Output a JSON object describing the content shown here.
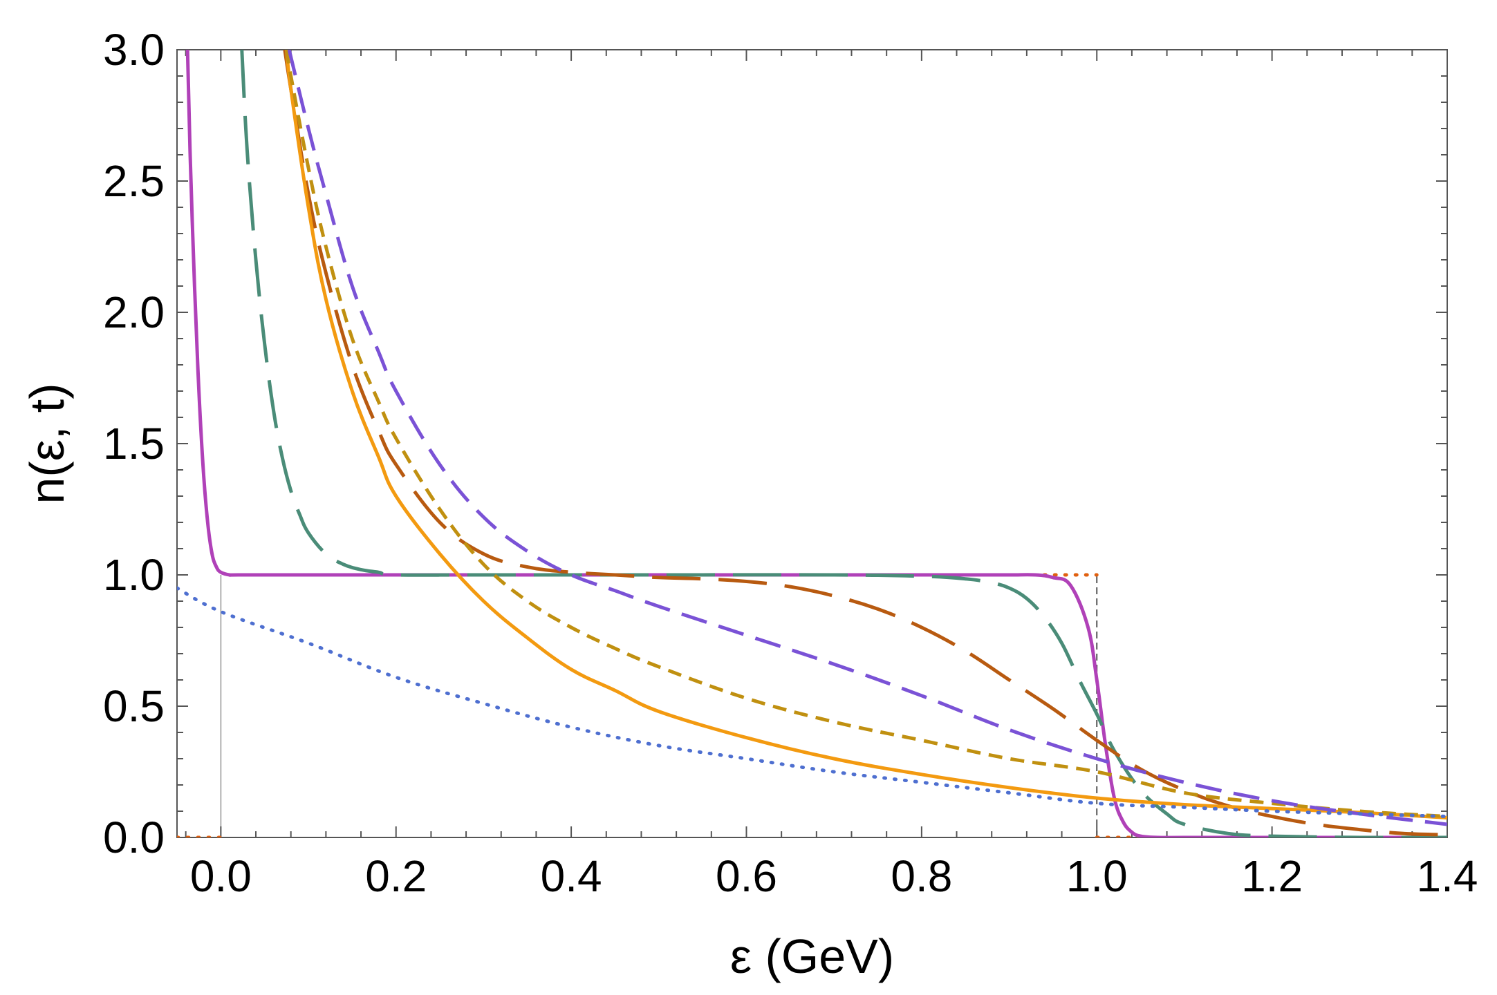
{
  "chart_data": {
    "type": "line",
    "title": "",
    "xlabel": "ε (GeV)",
    "ylabel": "n(ε, t)",
    "xlim": [
      -0.05,
      1.4
    ],
    "ylim": [
      0.0,
      3.0
    ],
    "x_ticks": [
      "0.0",
      "0.2",
      "0.4",
      "0.6",
      "0.8",
      "1.0",
      "1.2",
      "1.4"
    ],
    "x_tick_values": [
      0.0,
      0.2,
      0.4,
      0.6,
      0.8,
      1.0,
      1.2,
      1.4
    ],
    "y_ticks": [
      "0.0",
      "0.5",
      "1.0",
      "1.5",
      "2.0",
      "2.5",
      "3.0"
    ],
    "y_tick_values": [
      0.0,
      0.5,
      1.0,
      1.5,
      2.0,
      2.5,
      3.0
    ],
    "reference_lines": [
      {
        "name": "vertical-line-zero",
        "orientation": "vertical",
        "x": 0.0,
        "y_range": [
          0.0,
          1.0
        ],
        "color": "#b0b0b0",
        "dash": "solid"
      },
      {
        "name": "vertical-line-one",
        "orientation": "vertical",
        "x": 1.0,
        "y_range": [
          0.0,
          1.0
        ],
        "color": "#555555",
        "dash": "dashed"
      }
    ],
    "series": [
      {
        "name": "initial-step",
        "color": "#e06010",
        "dash": "dotted",
        "segments": [
          {
            "x": [
              -0.05,
              0.0
            ],
            "y": [
              0.0,
              0.0
            ]
          },
          {
            "x": [
              0.94,
              1.0
            ],
            "y": [
              1.0,
              1.0
            ]
          },
          {
            "x": [
              1.0,
              1.06
            ],
            "y": [
              0.0,
              0.0
            ]
          }
        ]
      },
      {
        "name": "magenta-solid",
        "color": "#b041b8",
        "dash": "solid",
        "x": [
          -0.038,
          -0.035,
          -0.03,
          -0.025,
          -0.02,
          -0.015,
          -0.01,
          -0.005,
          0.0,
          0.01,
          0.02,
          0.1,
          0.3,
          0.5,
          0.7,
          0.85,
          0.9,
          0.93,
          0.95,
          0.97,
          0.99,
          1.0,
          1.01,
          1.02,
          1.03,
          1.04,
          1.05,
          1.07,
          1.1,
          1.2,
          1.3,
          1.4
        ],
        "y": [
          3.0,
          2.6,
          2.1,
          1.7,
          1.4,
          1.2,
          1.08,
          1.03,
          1.01,
          1.0,
          1.0,
          1.0,
          1.0,
          1.0,
          1.0,
          1.0,
          1.0,
          1.0,
          0.99,
          0.96,
          0.8,
          0.6,
          0.35,
          0.15,
          0.06,
          0.02,
          0.005,
          0.0,
          0.0,
          0.0,
          0.0,
          0.0
        ]
      },
      {
        "name": "teal-long-dash",
        "color": "#4a8c78",
        "dash": "long-dash",
        "x": [
          0.024,
          0.03,
          0.04,
          0.05,
          0.06,
          0.07,
          0.08,
          0.09,
          0.1,
          0.12,
          0.14,
          0.16,
          0.18,
          0.2,
          0.3,
          0.5,
          0.7,
          0.8,
          0.85,
          0.88,
          0.9,
          0.92,
          0.94,
          0.96,
          0.98,
          1.0,
          1.02,
          1.05,
          1.08,
          1.1,
          1.15,
          1.2,
          1.3,
          1.4
        ],
        "y": [
          3.0,
          2.62,
          2.2,
          1.88,
          1.63,
          1.45,
          1.32,
          1.23,
          1.16,
          1.08,
          1.04,
          1.02,
          1.01,
          1.0,
          1.0,
          1.0,
          1.0,
          0.995,
          0.985,
          0.97,
          0.95,
          0.91,
          0.84,
          0.74,
          0.6,
          0.47,
          0.33,
          0.18,
          0.09,
          0.05,
          0.015,
          0.005,
          0.0,
          0.0
        ]
      },
      {
        "name": "brown-long-dash",
        "color": "#b85a10",
        "dash": "long-dash",
        "x": [
          0.073,
          0.08,
          0.1,
          0.12,
          0.15,
          0.18,
          0.2,
          0.25,
          0.3,
          0.35,
          0.4,
          0.45,
          0.5,
          0.55,
          0.6,
          0.65,
          0.7,
          0.75,
          0.8,
          0.85,
          0.9,
          0.95,
          1.0,
          1.05,
          1.1,
          1.15,
          1.2,
          1.25,
          1.3,
          1.35,
          1.4
        ],
        "y": [
          3.0,
          2.85,
          2.45,
          2.15,
          1.8,
          1.55,
          1.42,
          1.2,
          1.08,
          1.03,
          1.01,
          1.0,
          0.99,
          0.985,
          0.975,
          0.955,
          0.92,
          0.87,
          0.8,
          0.71,
          0.6,
          0.49,
          0.37,
          0.26,
          0.18,
          0.12,
          0.08,
          0.05,
          0.03,
          0.015,
          0.01
        ]
      },
      {
        "name": "orange-solid",
        "color": "#f39a10",
        "dash": "solid",
        "x": [
          0.075,
          0.08,
          0.1,
          0.12,
          0.15,
          0.18,
          0.2,
          0.25,
          0.3,
          0.35,
          0.4,
          0.45,
          0.5,
          0.6,
          0.7,
          0.8,
          0.9,
          1.0,
          1.1,
          1.2,
          1.3,
          1.4
        ],
        "y": [
          3.0,
          2.85,
          2.4,
          2.05,
          1.7,
          1.45,
          1.3,
          1.08,
          0.9,
          0.76,
          0.64,
          0.56,
          0.48,
          0.38,
          0.3,
          0.24,
          0.19,
          0.15,
          0.125,
          0.11,
          0.095,
          0.075
        ]
      },
      {
        "name": "gold-short-dash",
        "color": "#c09010",
        "dash": "short-dash",
        "x": [
          0.075,
          0.08,
          0.1,
          0.12,
          0.15,
          0.18,
          0.2,
          0.25,
          0.3,
          0.35,
          0.4,
          0.45,
          0.5,
          0.6,
          0.7,
          0.8,
          0.9,
          1.0,
          1.1,
          1.2,
          1.3,
          1.4
        ],
        "y": [
          3.0,
          2.9,
          2.55,
          2.25,
          1.9,
          1.66,
          1.52,
          1.25,
          1.04,
          0.9,
          0.8,
          0.72,
          0.65,
          0.53,
          0.44,
          0.37,
          0.3,
          0.25,
          0.17,
          0.13,
          0.1,
          0.08
        ]
      },
      {
        "name": "purple-dash",
        "color": "#7a52d6",
        "dash": "dash",
        "x": [
          0.078,
          0.1,
          0.12,
          0.15,
          0.18,
          0.2,
          0.25,
          0.3,
          0.35,
          0.4,
          0.45,
          0.5,
          0.6,
          0.7,
          0.8,
          0.9,
          1.0,
          1.1,
          1.2,
          1.3,
          1.4
        ],
        "y": [
          3.0,
          2.7,
          2.45,
          2.1,
          1.85,
          1.7,
          1.42,
          1.22,
          1.09,
          1.0,
          0.94,
          0.88,
          0.77,
          0.66,
          0.54,
          0.41,
          0.3,
          0.21,
          0.14,
          0.09,
          0.05
        ]
      },
      {
        "name": "blue-dotted",
        "color": "#4e6fd0",
        "dash": "dotted",
        "x": [
          -0.05,
          0.0,
          0.1,
          0.2,
          0.3,
          0.4,
          0.5,
          0.6,
          0.7,
          0.8,
          0.9,
          1.0,
          1.1,
          1.2,
          1.3,
          1.4
        ],
        "y": [
          0.95,
          0.86,
          0.74,
          0.61,
          0.51,
          0.42,
          0.35,
          0.3,
          0.25,
          0.21,
          0.17,
          0.13,
          0.115,
          0.1,
          0.09,
          0.08
        ]
      }
    ]
  }
}
